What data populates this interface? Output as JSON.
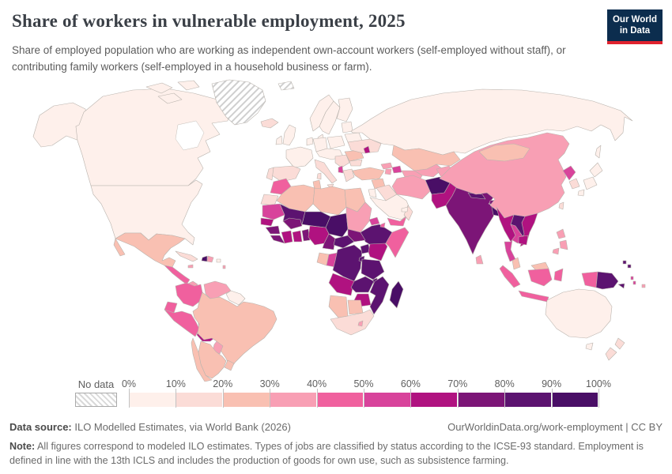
{
  "header": {
    "title": "Share of workers in vulnerable employment, 2025",
    "subtitle": "Share of employed population who are working as independent own-account workers (self-employed without staff), or contributing family workers (self-employed in a household business or farm).",
    "logo_line1": "Our World",
    "logo_line2": "in Data",
    "logo_bg": "#0c2d4e",
    "logo_accent": "#e0222e"
  },
  "legend": {
    "no_data_label": "No data",
    "tick_labels": [
      "0%",
      "10%",
      "20%",
      "30%",
      "40%",
      "50%",
      "60%",
      "70%",
      "80%",
      "90%",
      "100%"
    ]
  },
  "footer": {
    "source_label": "Data source:",
    "source_text": " ILO Modelled Estimates, via World Bank (2026)",
    "link_text": "OurWorldinData.org/work-employment | CC BY",
    "note_label": "Note:",
    "note_text": " All figures correspond to modeled ILO estimates. Types of jobs are classified by status according to the ICSE-93 standard. Employment is defined in line with the 13th ICLS and includes the production of goods for own use, such as subsistence farming."
  },
  "chart_data": {
    "type": "choropleth_map",
    "title": "Share of workers in vulnerable employment",
    "year": "2025",
    "unit": "% of employed population in vulnerable employment",
    "band_ranges": [
      "0-10%",
      "10-20%",
      "20-30%",
      "30-40%",
      "40-50%",
      "50-60%",
      "60-70%",
      "70-80%",
      "80-90%",
      "90-100%"
    ],
    "band_colors": [
      "#fef0eb",
      "#fbdcd7",
      "#f9c0b2",
      "#f89fb4",
      "#f0609e",
      "#d8439b",
      "#b01280",
      "#7c1577",
      "#5c1370",
      "#490e66"
    ],
    "no_data_color": "hatched",
    "regions": {
      "canada": 0,
      "united-states": 0,
      "greenland": "no_data",
      "svalbard": "no_data",
      "mexico": 2,
      "central-america": 4,
      "panama": 3,
      "cuba": 1,
      "haiti": 9,
      "dominican-republic": 3,
      "jamaica": 3,
      "puerto-rico": 0,
      "lesser-antilles": 3,
      "colombia": 4,
      "venezuela": 3,
      "guyanas": 0,
      "ecuador": 4,
      "peru": 4,
      "bolivia": 6,
      "brazil": 2,
      "paraguay": 3,
      "uruguay": 2,
      "argentina": 2,
      "chile": 2,
      "iceland": 1,
      "united-kingdom": 0,
      "ireland": 0,
      "norway": 0,
      "sweden": 0,
      "finland": 0,
      "denmark": 0,
      "baltics": 0,
      "belarus": 0,
      "poland": 0,
      "germany": 0,
      "benelux": 0,
      "france": 0,
      "spain": 1,
      "portugal": 1,
      "italy": 1,
      "central-europe": 0,
      "balkans": 1,
      "albania": 5,
      "greece": 1,
      "romania": 2,
      "bulgaria": 1,
      "ukraine": 1,
      "moldova": 6,
      "turkey": 2,
      "russia": 0,
      "kazakhstan": 2,
      "uzbekistan": 3,
      "turkmenistan": 3,
      "kyrgyzstan": 3,
      "georgia": 3,
      "armenia": 3,
      "azerbaijan": 5,
      "syria": 2,
      "iraq": 1,
      "jordan-israel": 0,
      "saudi-arabia": 0,
      "yemen": 4,
      "oman": 1,
      "uae": 0,
      "iran": 3,
      "afghanistan": 9,
      "pakistan": 6,
      "india": 7,
      "nepal": 8,
      "bhutan": 7,
      "bangladesh": 9,
      "sri-lanka": 3,
      "china": 3,
      "mongolia": 2,
      "north-korea": 5,
      "south-korea": 1,
      "japan": 0,
      "taiwan": 1,
      "myanmar": 6,
      "laos": 8,
      "thailand": 5,
      "vietnam": 6,
      "cambodia": 6,
      "malaysia": 2,
      "philippines": 3,
      "indonesia": 4,
      "papua-new-guinea": 8,
      "solomon-islands": 8,
      "vanuatu": 5,
      "fiji": 3,
      "australia": 0,
      "new-zealand": 1,
      "morocco": 4,
      "western-sahara": 1,
      "algeria": 2,
      "tunisia": 2,
      "libya": 2,
      "egypt": 2,
      "mauritania": 5,
      "mali": 8,
      "niger": 9,
      "chad": 9,
      "sudan": 3,
      "eritrea": 5,
      "ethiopia": 8,
      "djibouti": 4,
      "somalia": 4,
      "senegal": 6,
      "guinea": 7,
      "sierra-leone": 7,
      "cote-divoire": 6,
      "ghana": 6,
      "burkina-faso": 7,
      "benin-togo": 7,
      "nigeria": 6,
      "cameroon": 7,
      "central-african-republic": 8,
      "south-sudan": 7,
      "gabon": 2,
      "congo": 5,
      "dr-congo": 8,
      "uganda": 8,
      "kenya": 6,
      "rwanda-burundi": 8,
      "tanzania": 8,
      "angola": 6,
      "zambia": 8,
      "malawi": 8,
      "mozambique": 8,
      "zimbabwe": 6,
      "namibia": 2,
      "botswana": 2,
      "south-africa": 1,
      "lesotho": 3,
      "madagascar": 9
    }
  }
}
